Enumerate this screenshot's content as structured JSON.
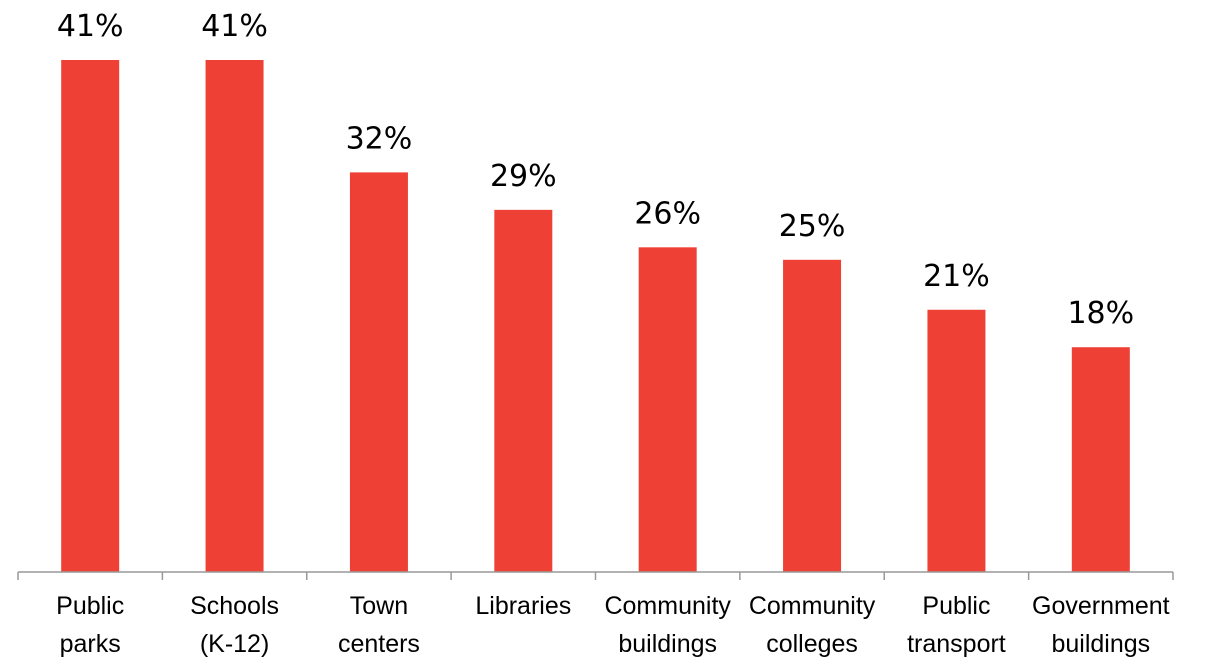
{
  "chart_data": {
    "type": "bar",
    "title": "",
    "xlabel": "",
    "ylabel": "",
    "categories": [
      [
        "Public",
        "parks"
      ],
      [
        "Schools",
        "(K-12)"
      ],
      [
        "Town",
        "centers"
      ],
      [
        "Libraries"
      ],
      [
        "Community",
        "buildings"
      ],
      [
        "Community",
        "colleges"
      ],
      [
        "Public",
        "transport"
      ],
      [
        "Government",
        "buildings"
      ]
    ],
    "values": [
      41,
      41,
      32,
      29,
      26,
      25,
      21,
      18
    ],
    "value_labels": [
      "41%",
      "41%",
      "32%",
      "29%",
      "26%",
      "25%",
      "21%",
      "18%"
    ],
    "ylim": [
      0,
      41
    ],
    "grid": false,
    "bar_color": "#EE4035"
  }
}
